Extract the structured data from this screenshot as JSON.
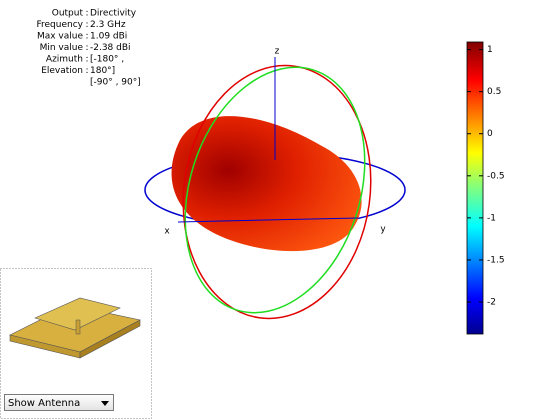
{
  "info": {
    "separator": ":",
    "rows": [
      [
        "Output",
        "Directivity"
      ],
      [
        "Frequency",
        "2.3 GHz"
      ],
      [
        "Max value",
        "1.09 dBi"
      ],
      [
        "Min value",
        "-2.38 dBi"
      ],
      [
        "Azimuth",
        "[-180° ,"
      ],
      [
        "Elevation",
        "180°]"
      ]
    ],
    "extra": "[-90° , 90°]"
  },
  "axes": {
    "x": "x",
    "y": "y",
    "z": "z"
  },
  "colorbar": {
    "lim": [
      -2.38,
      1.09
    ],
    "ticks": [
      1,
      0.5,
      0,
      -0.5,
      -1,
      -1.5,
      -2
    ]
  },
  "dropdown": "Show Antenna"
}
